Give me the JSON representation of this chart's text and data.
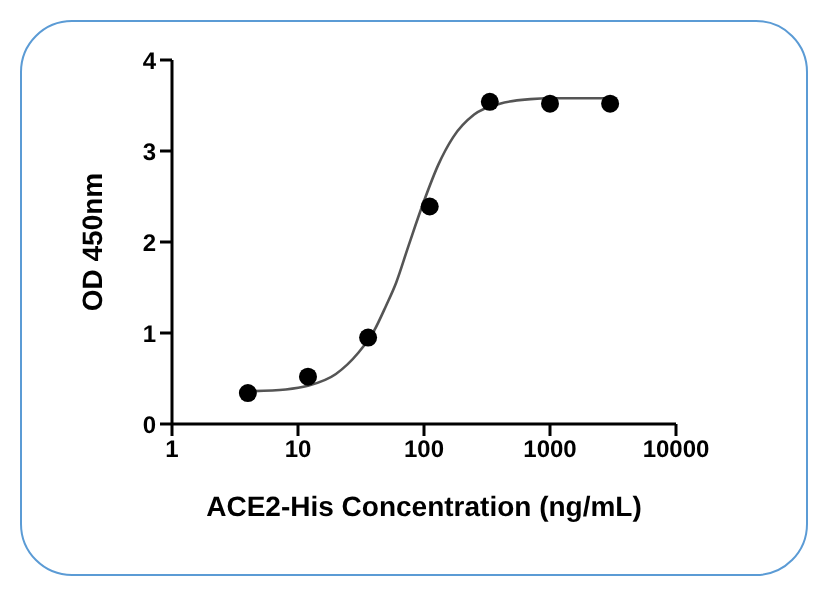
{
  "chart_data": {
    "type": "scatter",
    "xlabel": "ACE2-His Concentration (ng/mL)",
    "ylabel": "OD 450nm",
    "log": "x",
    "xlim": [
      1,
      10000
    ],
    "xticks": [
      1,
      10,
      100,
      1000,
      10000
    ],
    "ylim": [
      0,
      4
    ],
    "yticks": [
      0,
      1,
      2,
      3,
      4
    ],
    "grid": false,
    "legend": false,
    "marker": "circle",
    "series": [
      {
        "color": "#000000",
        "x": [
          4,
          12,
          36,
          111,
          333,
          1000,
          3000
        ],
        "values": [
          0.34,
          0.52,
          0.95,
          2.39,
          3.54,
          3.52,
          3.52
        ]
      },
      {
        "type": "line",
        "color": "#555555",
        "marker": "none",
        "x": [
          4,
          8,
          12,
          20,
          30,
          40,
          50,
          60,
          75,
          100,
          130,
          170,
          250,
          400,
          700,
          1000,
          3000
        ],
        "values": [
          0.36,
          0.38,
          0.42,
          0.55,
          0.78,
          1.02,
          1.3,
          1.55,
          1.95,
          2.45,
          2.85,
          3.15,
          3.4,
          3.52,
          3.57,
          3.58,
          3.58
        ]
      }
    ]
  }
}
